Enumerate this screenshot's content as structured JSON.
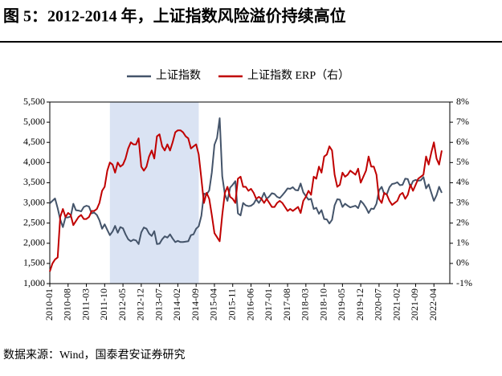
{
  "chart_data": {
    "type": "line",
    "title": "图 5：2012-2014 年，上证指数风险溢价持续高位",
    "source": "数据来源：Wind，国泰君安证券研究",
    "categories": [
      "2010-01",
      null,
      null,
      null,
      null,
      null,
      null,
      "2010-08",
      null,
      null,
      null,
      null,
      null,
      null,
      "2011-03",
      null,
      null,
      null,
      null,
      null,
      null,
      "2011-10",
      null,
      null,
      null,
      null,
      null,
      null,
      "2012-05",
      null,
      null,
      null,
      null,
      null,
      null,
      "2012-12",
      null,
      null,
      null,
      null,
      null,
      null,
      "2013-07",
      null,
      null,
      null,
      null,
      null,
      null,
      "2014-02",
      null,
      null,
      null,
      null,
      null,
      null,
      "2014-09",
      null,
      null,
      null,
      null,
      null,
      null,
      "2015-04",
      null,
      null,
      null,
      null,
      null,
      null,
      "2015-11",
      null,
      null,
      null,
      null,
      null,
      null,
      "2016-06",
      null,
      null,
      null,
      null,
      null,
      null,
      "2017-01",
      null,
      null,
      null,
      null,
      null,
      null,
      "2017-08",
      null,
      null,
      null,
      null,
      null,
      null,
      "2018-03",
      null,
      null,
      null,
      null,
      null,
      null,
      "2018-10",
      null,
      null,
      null,
      null,
      null,
      null,
      "2019-05",
      null,
      null,
      null,
      null,
      null,
      null,
      "2019-12",
      null,
      null,
      null,
      null,
      null,
      null,
      "2020-07",
      null,
      null,
      null,
      null,
      null,
      null,
      "2021-02",
      null,
      null,
      null,
      null,
      null,
      null,
      "2021-09",
      null,
      null,
      null,
      null,
      null,
      null,
      "2022-04",
      null,
      null,
      null
    ],
    "highlight": [
      23,
      57
    ],
    "series": [
      {
        "name": "上证指数",
        "color": "#44546a",
        "values": [
          2990,
          3050,
          3110,
          2870,
          2590,
          2400,
          2640,
          2640,
          2660,
          2980,
          2820,
          2810,
          2790,
          2900,
          2930,
          2910,
          2740,
          2760,
          2700,
          2570,
          2360,
          2470,
          2330,
          2200,
          2290,
          2430,
          2260,
          2400,
          2370,
          2220,
          2100,
          2050,
          2090,
          2070,
          1980,
          2270,
          2390,
          2360,
          2240,
          2180,
          2300,
          1980,
          1990,
          2100,
          2170,
          2140,
          2220,
          2120,
          2030,
          2060,
          2030,
          2030,
          2040,
          2050,
          2200,
          2220,
          2360,
          2420,
          2680,
          3230,
          3210,
          3310,
          3750,
          4440,
          4610,
          5100,
          3660,
          3210,
          3050,
          3380,
          3450,
          3540,
          2740,
          2690,
          3000,
          2940,
          2920,
          2930,
          2980,
          3090,
          3000,
          3100,
          3250,
          3100,
          3160,
          3240,
          3220,
          3150,
          3120,
          3190,
          3270,
          3360,
          3350,
          3390,
          3320,
          3310,
          3480,
          3260,
          3170,
          3080,
          3100,
          2850,
          2880,
          2730,
          2820,
          2600,
          2590,
          2490,
          2580,
          2940,
          3090,
          3080,
          2900,
          2980,
          2930,
          2890,
          2910,
          2930,
          2870,
          3050,
          2980,
          2880,
          2750,
          2860,
          2850,
          2980,
          3310,
          3400,
          3220,
          3220,
          3390,
          3470,
          3480,
          3510,
          3440,
          3450,
          3600,
          3590,
          3400,
          3540,
          3570,
          3550,
          3560,
          3640,
          3360,
          3460,
          3250,
          3050,
          3190,
          3400,
          3250
        ]
      },
      {
        "name": "上证指数 ERP（右）",
        "color": "#c00000",
        "axis": "y2",
        "values": [
          -0.4,
          0.0,
          0.2,
          0.3,
          2.3,
          2.7,
          2.3,
          2.5,
          2.4,
          1.9,
          2.1,
          2.3,
          2.4,
          2.2,
          2.2,
          2.3,
          2.6,
          2.6,
          2.7,
          3.0,
          3.6,
          3.8,
          4.6,
          5.0,
          4.9,
          4.5,
          5.0,
          4.8,
          4.9,
          5.2,
          5.7,
          6.0,
          5.9,
          5.9,
          6.2,
          4.8,
          4.6,
          4.8,
          5.3,
          5.6,
          5.2,
          6.3,
          6.4,
          5.8,
          5.6,
          5.9,
          5.6,
          6.0,
          6.5,
          6.6,
          6.6,
          6.5,
          6.3,
          6.2,
          5.7,
          5.8,
          5.9,
          5.4,
          4.2,
          3.0,
          3.5,
          3.2,
          2.4,
          1.5,
          1.3,
          1.1,
          2.4,
          3.5,
          3.8,
          3.3,
          3.2,
          3.0,
          4.2,
          4.3,
          3.8,
          3.8,
          3.6,
          3.7,
          3.5,
          3.2,
          3.3,
          3.2,
          3.0,
          3.2,
          3.0,
          2.8,
          2.8,
          3.0,
          3.1,
          3.0,
          2.8,
          2.6,
          2.7,
          2.6,
          2.7,
          2.8,
          2.5,
          3.1,
          3.3,
          3.6,
          3.4,
          4.3,
          4.2,
          4.8,
          4.5,
          5.3,
          5.4,
          5.8,
          5.6,
          4.4,
          3.8,
          3.9,
          4.5,
          4.3,
          4.4,
          4.6,
          4.5,
          4.4,
          4.7,
          4.0,
          4.3,
          4.6,
          5.3,
          4.8,
          4.8,
          4.4,
          3.2,
          3.0,
          3.5,
          3.4,
          3.1,
          2.9,
          3.0,
          3.1,
          3.4,
          3.5,
          3.2,
          3.4,
          3.9,
          3.6,
          3.9,
          4.2,
          4.3,
          4.4,
          5.3,
          4.9,
          5.5,
          6.0,
          5.2,
          4.9,
          5.6
        ]
      }
    ],
    "ylim": [
      1000,
      5500
    ],
    "yticks": [
      {
        "value": 1000,
        "label": "1,000"
      },
      {
        "value": 1500,
        "label": "1,500"
      },
      {
        "value": 2000,
        "label": "2,000"
      },
      {
        "value": 2500,
        "label": "2,500"
      },
      {
        "value": 3000,
        "label": "3,000"
      },
      {
        "value": 3500,
        "label": "3,500"
      },
      {
        "value": 4000,
        "label": "4,000"
      },
      {
        "value": 4500,
        "label": "4,500"
      },
      {
        "value": 5000,
        "label": "5,000"
      },
      {
        "value": 5500,
        "label": "5,500"
      }
    ],
    "y2lim": [
      -1,
      8
    ],
    "y2ticks": [
      {
        "value": -1,
        "label": "-1%"
      },
      {
        "value": 0,
        "label": "0%"
      },
      {
        "value": 1,
        "label": "1%"
      },
      {
        "value": 2,
        "label": "2%"
      },
      {
        "value": 3,
        "label": "3%"
      },
      {
        "value": 4,
        "label": "4%"
      },
      {
        "value": 5,
        "label": "5%"
      },
      {
        "value": 6,
        "label": "6%"
      },
      {
        "value": 7,
        "label": "7%"
      },
      {
        "value": 8,
        "label": "8%"
      }
    ],
    "legend": "top"
  }
}
